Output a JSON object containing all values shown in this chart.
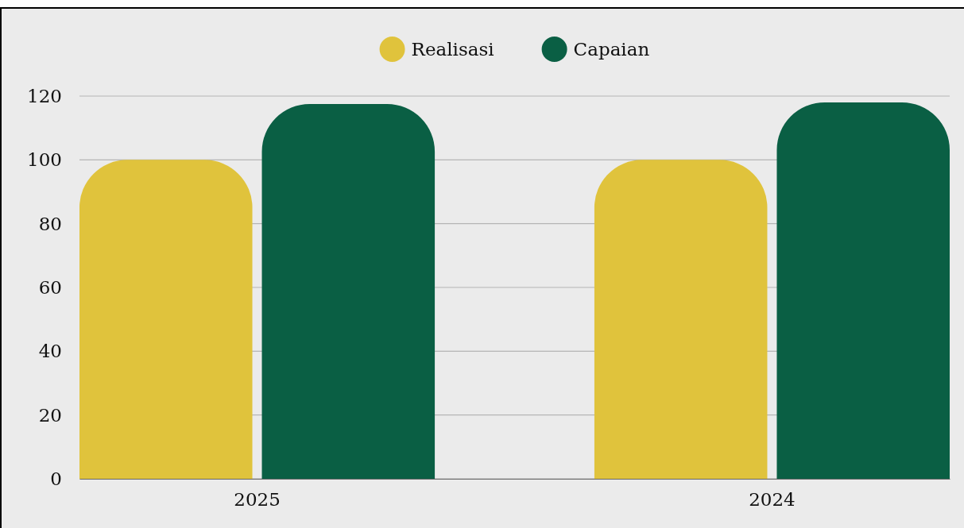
{
  "chart_data": {
    "type": "bar",
    "categories": [
      "2025",
      "2024"
    ],
    "series": [
      {
        "name": "Realisasi",
        "color": "#e0c33c",
        "values": [
          100,
          100
        ]
      },
      {
        "name": "Capaian",
        "color": "#0a5f44",
        "values": [
          117.5,
          118
        ]
      }
    ],
    "ylim": [
      0,
      120
    ],
    "yticks": [
      0,
      20,
      40,
      60,
      80,
      100,
      120
    ],
    "grid": "y",
    "legend": "top"
  }
}
